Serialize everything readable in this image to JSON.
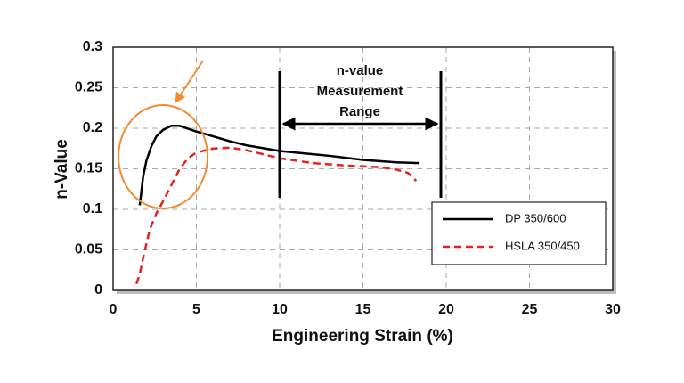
{
  "chart_data": {
    "type": "line",
    "x_label": "Engineering Strain (%)",
    "y_label": "n-Value",
    "annotations": [
      "n-value",
      "Measurement",
      "Range"
    ],
    "xlim": [
      0,
      30
    ],
    "xticks": [
      0,
      5,
      10,
      15,
      20,
      25,
      30
    ],
    "ylim": [
      0,
      0.3
    ],
    "yticks": [
      0,
      0.05,
      0.1,
      0.15,
      0.2,
      0.25,
      0.3
    ],
    "grid": true,
    "legend": "lower right",
    "series": [
      {
        "name": "DP 350/600",
        "color": "#000000",
        "line_style": "solid",
        "x": [
          1.6,
          1.8,
          2.0,
          2.3,
          2.6,
          3.0,
          3.5,
          4.0,
          5.0,
          6.0,
          7.0,
          8.0,
          10.0,
          12.0,
          13.0,
          15.0,
          17.0,
          18.4
        ],
        "values": [
          0.105,
          0.14,
          0.16,
          0.178,
          0.19,
          0.198,
          0.203,
          0.203,
          0.196,
          0.19,
          0.184,
          0.179,
          0.172,
          0.168,
          0.166,
          0.161,
          0.158,
          0.157
        ]
      },
      {
        "name": "HSLA 350/450",
        "color": "#e8201e",
        "line_style": "dashed",
        "x": [
          1.4,
          1.6,
          1.8,
          2.2,
          2.6,
          3.0,
          3.5,
          4.0,
          4.5,
          5.0,
          6.0,
          7.0,
          8.0,
          9.0,
          10.0,
          12.0,
          14.0,
          16.0,
          17.0,
          17.7,
          18.2
        ],
        "values": [
          0.008,
          0.02,
          0.04,
          0.075,
          0.095,
          0.11,
          0.13,
          0.15,
          0.163,
          0.17,
          0.175,
          0.176,
          0.173,
          0.168,
          0.163,
          0.157,
          0.154,
          0.152,
          0.149,
          0.145,
          0.135
        ]
      }
    ]
  }
}
